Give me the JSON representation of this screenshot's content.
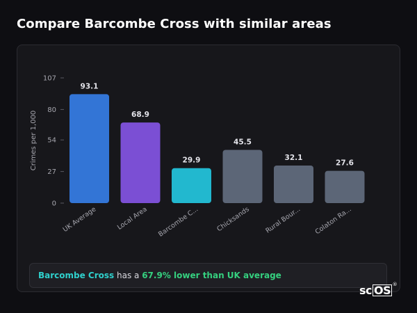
{
  "page": {
    "title": "Compare Barcombe Cross with similar areas"
  },
  "chart_data": {
    "type": "bar",
    "ylabel": "Crimes per 1,000",
    "xlabel": "",
    "ylim": [
      0,
      107
    ],
    "yticks": [
      0,
      27,
      54,
      80,
      107
    ],
    "grid": false,
    "categories": [
      "UK Average",
      "Local Area",
      "Barcombe C...",
      "Chicksands",
      "Rural Bour...",
      "Colaton Ra..."
    ],
    "values": [
      93.1,
      68.9,
      29.9,
      45.5,
      32.1,
      27.6
    ],
    "value_labels": [
      "93.1",
      "68.9",
      "29.9",
      "45.5",
      "32.1",
      "27.6"
    ],
    "colors": [
      "#3375d6",
      "#7b4fd4",
      "#22b8cf",
      "#5c6677",
      "#5c6677",
      "#5c6677"
    ]
  },
  "summary": {
    "place": "Barcombe Cross",
    "middle": " has a ",
    "highlight": "67.9% lower than UK average"
  },
  "logo": {
    "prefix": "sc",
    "boxed": "OS",
    "mark": "®"
  }
}
